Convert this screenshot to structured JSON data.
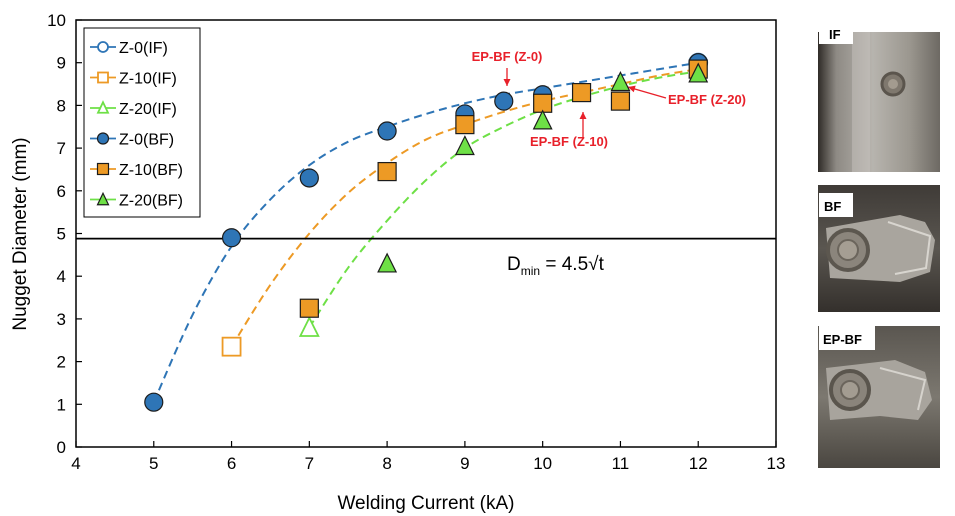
{
  "chart_data": {
    "type": "scatter",
    "xlabel": "Welding Current (kA)",
    "ylabel": "Nugget Diameter (mm)",
    "xlim": [
      4,
      13
    ],
    "ylim": [
      0,
      10
    ],
    "xticks": [
      "4",
      "5",
      "6",
      "7",
      "8",
      "9",
      "10",
      "11",
      "12",
      "13"
    ],
    "yticks": [
      "0",
      "1",
      "2",
      "3",
      "4",
      "5",
      "6",
      "7",
      "8",
      "9",
      "10"
    ],
    "grid": false,
    "legend_position": "top-left",
    "series": [
      {
        "name": "Z-0(IF)",
        "marker": "circle",
        "filled": false,
        "color": "#2e75b6",
        "x": [
          12
        ],
        "y": [
          9.0
        ]
      },
      {
        "name": "Z-10(IF)",
        "marker": "square",
        "filled": false,
        "color": "#ed9a25",
        "x": [
          6
        ],
        "y": [
          2.35
        ]
      },
      {
        "name": "Z-20(IF)",
        "marker": "triangle",
        "filled": false,
        "color": "#6ee046",
        "x": [
          7
        ],
        "y": [
          2.8
        ]
      },
      {
        "name": "Z-0(BF)",
        "marker": "circle",
        "filled": true,
        "color": "#2e75b6",
        "x": [
          5,
          6,
          7,
          8,
          9,
          9.5,
          10,
          12
        ],
        "y": [
          1.05,
          4.9,
          6.3,
          7.4,
          7.8,
          8.1,
          8.25,
          9.0
        ]
      },
      {
        "name": "Z-10(BF)",
        "marker": "square",
        "filled": true,
        "color": "#ed9a25",
        "x": [
          7,
          8,
          9,
          10,
          10.5,
          11,
          12
        ],
        "y": [
          3.25,
          6.45,
          7.55,
          8.05,
          8.3,
          8.1,
          8.85
        ]
      },
      {
        "name": "Z-20(BF)",
        "marker": "triangle",
        "filled": true,
        "color": "#6ee046",
        "x": [
          8,
          9,
          10,
          11,
          12
        ],
        "y": [
          4.3,
          7.05,
          7.65,
          8.55,
          8.75
        ]
      }
    ],
    "fit_curves": [
      {
        "color": "#2e75b6",
        "x": [
          5,
          5.5,
          6,
          6.5,
          7,
          7.5,
          8,
          8.5,
          9,
          9.5,
          10,
          10.5,
          11,
          11.5,
          12
        ],
        "y": [
          1.05,
          3.1,
          4.7,
          5.8,
          6.6,
          7.15,
          7.5,
          7.8,
          8.05,
          8.25,
          8.4,
          8.55,
          8.7,
          8.85,
          9.0
        ]
      },
      {
        "color": "#ed9a25",
        "x": [
          6,
          6.5,
          7,
          7.5,
          8,
          8.5,
          9,
          9.5,
          10,
          10.5,
          11,
          11.5,
          12
        ],
        "y": [
          2.35,
          3.8,
          5.0,
          5.95,
          6.65,
          7.2,
          7.55,
          7.85,
          8.1,
          8.3,
          8.5,
          8.7,
          8.85
        ]
      },
      {
        "color": "#6ee046",
        "x": [
          7,
          7.5,
          8,
          8.5,
          9,
          9.5,
          10,
          10.5,
          11,
          11.5,
          12
        ],
        "y": [
          2.8,
          4.2,
          5.3,
          6.25,
          7.0,
          7.5,
          7.9,
          8.2,
          8.45,
          8.65,
          8.8
        ]
      }
    ],
    "hline": {
      "y": 4.88
    },
    "dmin_label": {
      "main": "D",
      "sub": "min",
      "rest": " = 4.5√t"
    },
    "annotations": [
      {
        "text": "EP-BF (Z-0)",
        "x": 9.5,
        "y": 8.1
      },
      {
        "text": "EP-BF (Z-10)",
        "x": 10.5,
        "y": 8.3
      },
      {
        "text": "EP-BF (Z-20)",
        "x": 11.1,
        "y": 8.5
      }
    ]
  },
  "photos": [
    {
      "label": "IF"
    },
    {
      "label": "BF"
    },
    {
      "label": "EP-BF"
    }
  ]
}
